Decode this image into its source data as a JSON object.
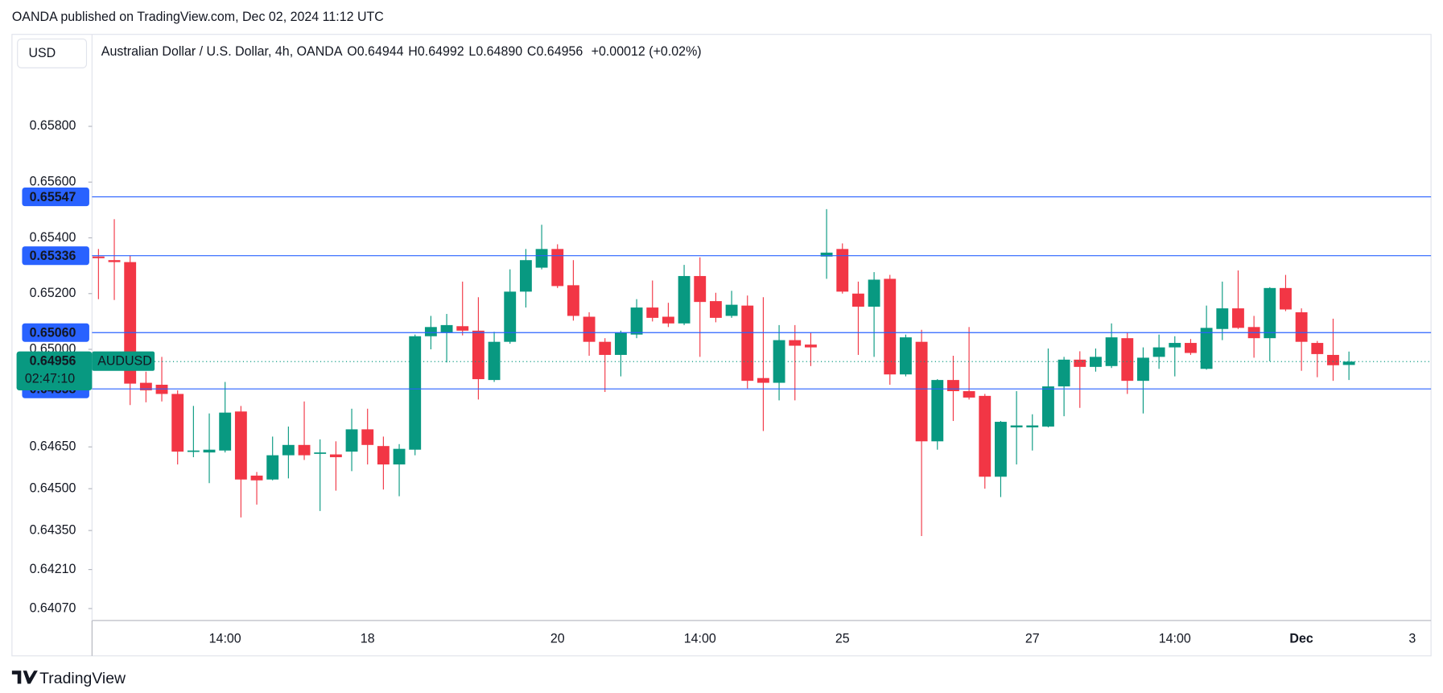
{
  "published": "OANDA published on TradingView.com, Dec 02, 2024 11:12 UTC",
  "currency_button": "USD",
  "brand": "TradingView",
  "header": {
    "symbol": "Australian Dollar / U.S. Dollar, 4h, OANDA",
    "o_key": "O",
    "o": "0.64944",
    "h_key": "H",
    "h": "0.64992",
    "l_key": "L",
    "l": "0.64890",
    "c_key": "C",
    "c": "0.64956",
    "change": "+0.00012 (+0.02%)"
  },
  "chart_data": {
    "type": "candlestick",
    "up_color": "#089981",
    "down_color": "#f23645",
    "line_color": "#2962ff",
    "ylim": [
      0.64027,
      0.6613
    ],
    "yticks": [
      {
        "value": 0.658,
        "label": "0.65800"
      },
      {
        "value": 0.656,
        "label": "0.65600"
      },
      {
        "value": 0.654,
        "label": "0.65400"
      },
      {
        "value": 0.652,
        "label": "0.65200"
      },
      {
        "value": 0.65,
        "label": "0.65000"
      },
      {
        "value": 0.6465,
        "label": "0.64650"
      },
      {
        "value": 0.645,
        "label": "0.64500"
      },
      {
        "value": 0.6435,
        "label": "0.64350"
      },
      {
        "value": 0.6421,
        "label": "0.64210"
      },
      {
        "value": 0.6407,
        "label": "0.64070"
      }
    ],
    "categories": [
      null,
      null,
      null,
      null,
      null,
      null,
      null,
      null,
      "14:00",
      null,
      null,
      null,
      null,
      null,
      null,
      null,
      null,
      "18",
      null,
      null,
      null,
      null,
      null,
      null,
      null,
      null,
      null,
      null,
      null,
      "20",
      null,
      null,
      null,
      null,
      null,
      null,
      null,
      null,
      "14:00",
      null,
      null,
      null,
      null,
      null,
      null,
      null,
      null,
      "25",
      null,
      null,
      null,
      null,
      null,
      null,
      null,
      null,
      null,
      null,
      null,
      "27",
      null,
      null,
      null,
      null,
      null,
      null,
      null,
      null,
      "14:00",
      null,
      null,
      null,
      null,
      null,
      null,
      null,
      "Dec",
      null,
      null,
      null,
      null,
      null,
      null,
      "3",
      null
    ],
    "open": [
      0.65333,
      0.6532,
      0.65313,
      0.6488,
      0.64873,
      0.6484,
      0.64633,
      0.6463,
      0.64637,
      0.64777,
      0.64547,
      0.64533,
      0.6462,
      0.64657,
      0.64627,
      0.64623,
      0.64633,
      0.64713,
      0.64653,
      0.64587,
      0.6464,
      0.65047,
      0.6506,
      0.65083,
      0.65067,
      0.6489,
      0.65027,
      0.65207,
      0.65293,
      0.6536,
      0.6523,
      0.65117,
      0.65027,
      0.6498,
      0.65053,
      0.6515,
      0.65117,
      0.65093,
      0.65263,
      0.65173,
      0.6512,
      0.65157,
      0.64897,
      0.6488,
      0.65033,
      0.65017,
      0.65333,
      0.6536,
      0.652,
      0.65153,
      0.65253,
      0.6491,
      0.65027,
      0.6467,
      0.6489,
      0.6485,
      0.64833,
      0.64543,
      0.6472,
      0.6472,
      0.64723,
      0.64867,
      0.64963,
      0.64937,
      0.6494,
      0.6504,
      0.64887,
      0.64973,
      0.65007,
      0.65023,
      0.6493,
      0.65073,
      0.65147,
      0.6508,
      0.6504,
      0.6522,
      0.65133,
      0.65023,
      0.6498,
      0.64944,
      null,
      null,
      null,
      null,
      null
    ],
    "high": [
      0.6536,
      0.65467,
      0.65337,
      0.6492,
      0.64973,
      0.64853,
      0.64797,
      0.6477,
      0.64883,
      0.64797,
      0.6456,
      0.64687,
      0.64723,
      0.64813,
      0.64677,
      0.6467,
      0.64787,
      0.64787,
      0.64687,
      0.6466,
      0.65053,
      0.6512,
      0.65127,
      0.65243,
      0.65187,
      0.65063,
      0.65287,
      0.6536,
      0.65447,
      0.65377,
      0.6532,
      0.65133,
      0.6504,
      0.65067,
      0.6518,
      0.65247,
      0.65167,
      0.65303,
      0.6533,
      0.65203,
      0.6521,
      0.65193,
      0.65187,
      0.65087,
      0.65087,
      0.6506,
      0.65503,
      0.6538,
      0.65243,
      0.65277,
      0.65267,
      0.65053,
      0.6507,
      0.64893,
      0.64977,
      0.6508,
      0.6484,
      0.64743,
      0.6485,
      0.64767,
      0.65003,
      0.64973,
      0.64993,
      0.65003,
      0.65093,
      0.6506,
      0.65007,
      0.65053,
      0.65047,
      0.65037,
      0.65157,
      0.65243,
      0.65283,
      0.6512,
      0.65223,
      0.65267,
      0.65147,
      0.6503,
      0.6511,
      0.64992,
      null,
      null,
      null,
      null,
      null
    ],
    "low": [
      0.6518,
      0.65177,
      0.648,
      0.6481,
      0.64813,
      0.64587,
      0.64613,
      0.6452,
      0.6463,
      0.64397,
      0.64443,
      0.6453,
      0.64537,
      0.64603,
      0.6442,
      0.64493,
      0.64563,
      0.64587,
      0.64497,
      0.64473,
      0.6462,
      0.65,
      0.64953,
      0.6505,
      0.6482,
      0.64883,
      0.6502,
      0.6515,
      0.65287,
      0.6522,
      0.65103,
      0.64977,
      0.64847,
      0.64903,
      0.6504,
      0.651,
      0.6508,
      0.65087,
      0.64973,
      0.65097,
      0.65113,
      0.6486,
      0.64707,
      0.64817,
      0.64817,
      0.6494,
      0.65253,
      0.652,
      0.6498,
      0.64973,
      0.64873,
      0.64903,
      0.6433,
      0.6464,
      0.64743,
      0.6482,
      0.645,
      0.6447,
      0.64587,
      0.64637,
      0.6472,
      0.6476,
      0.6479,
      0.6492,
      0.64933,
      0.6484,
      0.6477,
      0.6493,
      0.64903,
      0.6498,
      0.64927,
      0.65033,
      0.65073,
      0.6497,
      0.64957,
      0.65137,
      0.64923,
      0.649,
      0.64887,
      0.6489,
      null,
      null,
      null,
      null,
      null
    ],
    "close": [
      0.65327,
      0.65313,
      0.64877,
      0.64853,
      0.6484,
      0.64633,
      0.64637,
      0.6464,
      0.64773,
      0.64533,
      0.6453,
      0.6462,
      0.64657,
      0.6462,
      0.6463,
      0.64613,
      0.64713,
      0.64657,
      0.64587,
      0.64643,
      0.65047,
      0.6508,
      0.65087,
      0.65067,
      0.64893,
      0.65027,
      0.65207,
      0.6532,
      0.6536,
      0.65227,
      0.6512,
      0.65027,
      0.6498,
      0.6506,
      0.6515,
      0.65113,
      0.65093,
      0.65263,
      0.6517,
      0.65113,
      0.6516,
      0.64887,
      0.6488,
      0.65033,
      0.65013,
      0.65007,
      0.65347,
      0.65207,
      0.65153,
      0.6525,
      0.6491,
      0.65043,
      0.6467,
      0.6489,
      0.6485,
      0.64827,
      0.64543,
      0.6474,
      0.64727,
      0.64727,
      0.64867,
      0.64963,
      0.64937,
      0.64973,
      0.65043,
      0.64887,
      0.6497,
      0.65007,
      0.65023,
      0.64987,
      0.65077,
      0.65147,
      0.65077,
      0.6504,
      0.6522,
      0.65143,
      0.65027,
      0.64983,
      0.64943,
      0.64956,
      null,
      null,
      null,
      null,
      null
    ],
    "price_lines": [
      0.65547,
      0.65336,
      {
        "value": 0.6506,
        "label": "0.65060"
      },
      0.64858
    ],
    "last_price": 0.64956,
    "last_symbol": "AUDUSD",
    "countdown": "02:47:10"
  }
}
